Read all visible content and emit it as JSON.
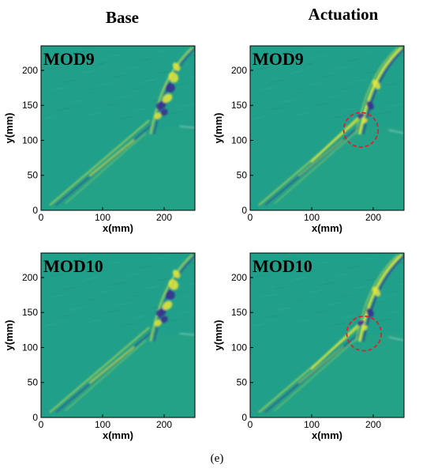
{
  "columns": {
    "base": "Base",
    "actuation": "Actuation"
  },
  "caption": "(e)",
  "colors": {
    "background_field": "#20a08a",
    "lower_field": "#23a287",
    "bright": "#e8e83a",
    "dark": "#3b2a8f",
    "marker": "#e0202a"
  },
  "chart_data": [
    {
      "type": "heatmap",
      "panel": "top-left",
      "mode_label": "MOD9",
      "xlabel": "x(mm)",
      "ylabel": "y(mm)",
      "xlim": [
        0,
        250
      ],
      "ylim": [
        0,
        235
      ],
      "xticks": [
        0,
        100,
        200
      ],
      "yticks": [
        0,
        50,
        100,
        150,
        200
      ],
      "highlight_circle": null
    },
    {
      "type": "heatmap",
      "panel": "top-right",
      "mode_label": "MOD9",
      "xlabel": "x(mm)",
      "ylabel": "y(mm)",
      "xlim": [
        0,
        250
      ],
      "ylim": [
        0,
        235
      ],
      "xticks": [
        0,
        100,
        200
      ],
      "yticks": [
        0,
        50,
        100,
        150,
        200
      ],
      "highlight_circle": {
        "x": 180,
        "y": 115,
        "r": 28
      }
    },
    {
      "type": "heatmap",
      "panel": "bottom-left",
      "mode_label": "MOD10",
      "xlabel": "x(mm)",
      "ylabel": "y(mm)",
      "xlim": [
        0,
        250
      ],
      "ylim": [
        0,
        235
      ],
      "xticks": [
        0,
        100,
        200
      ],
      "yticks": [
        0,
        50,
        100,
        150,
        200
      ],
      "highlight_circle": null
    },
    {
      "type": "heatmap",
      "panel": "bottom-right",
      "mode_label": "MOD10",
      "xlabel": "x(mm)",
      "ylabel": "y(mm)",
      "xlim": [
        0,
        250
      ],
      "ylim": [
        0,
        235
      ],
      "xticks": [
        0,
        100,
        200
      ],
      "yticks": [
        0,
        50,
        100,
        150,
        200
      ],
      "highlight_circle": {
        "x": 185,
        "y": 120,
        "r": 28
      }
    }
  ]
}
